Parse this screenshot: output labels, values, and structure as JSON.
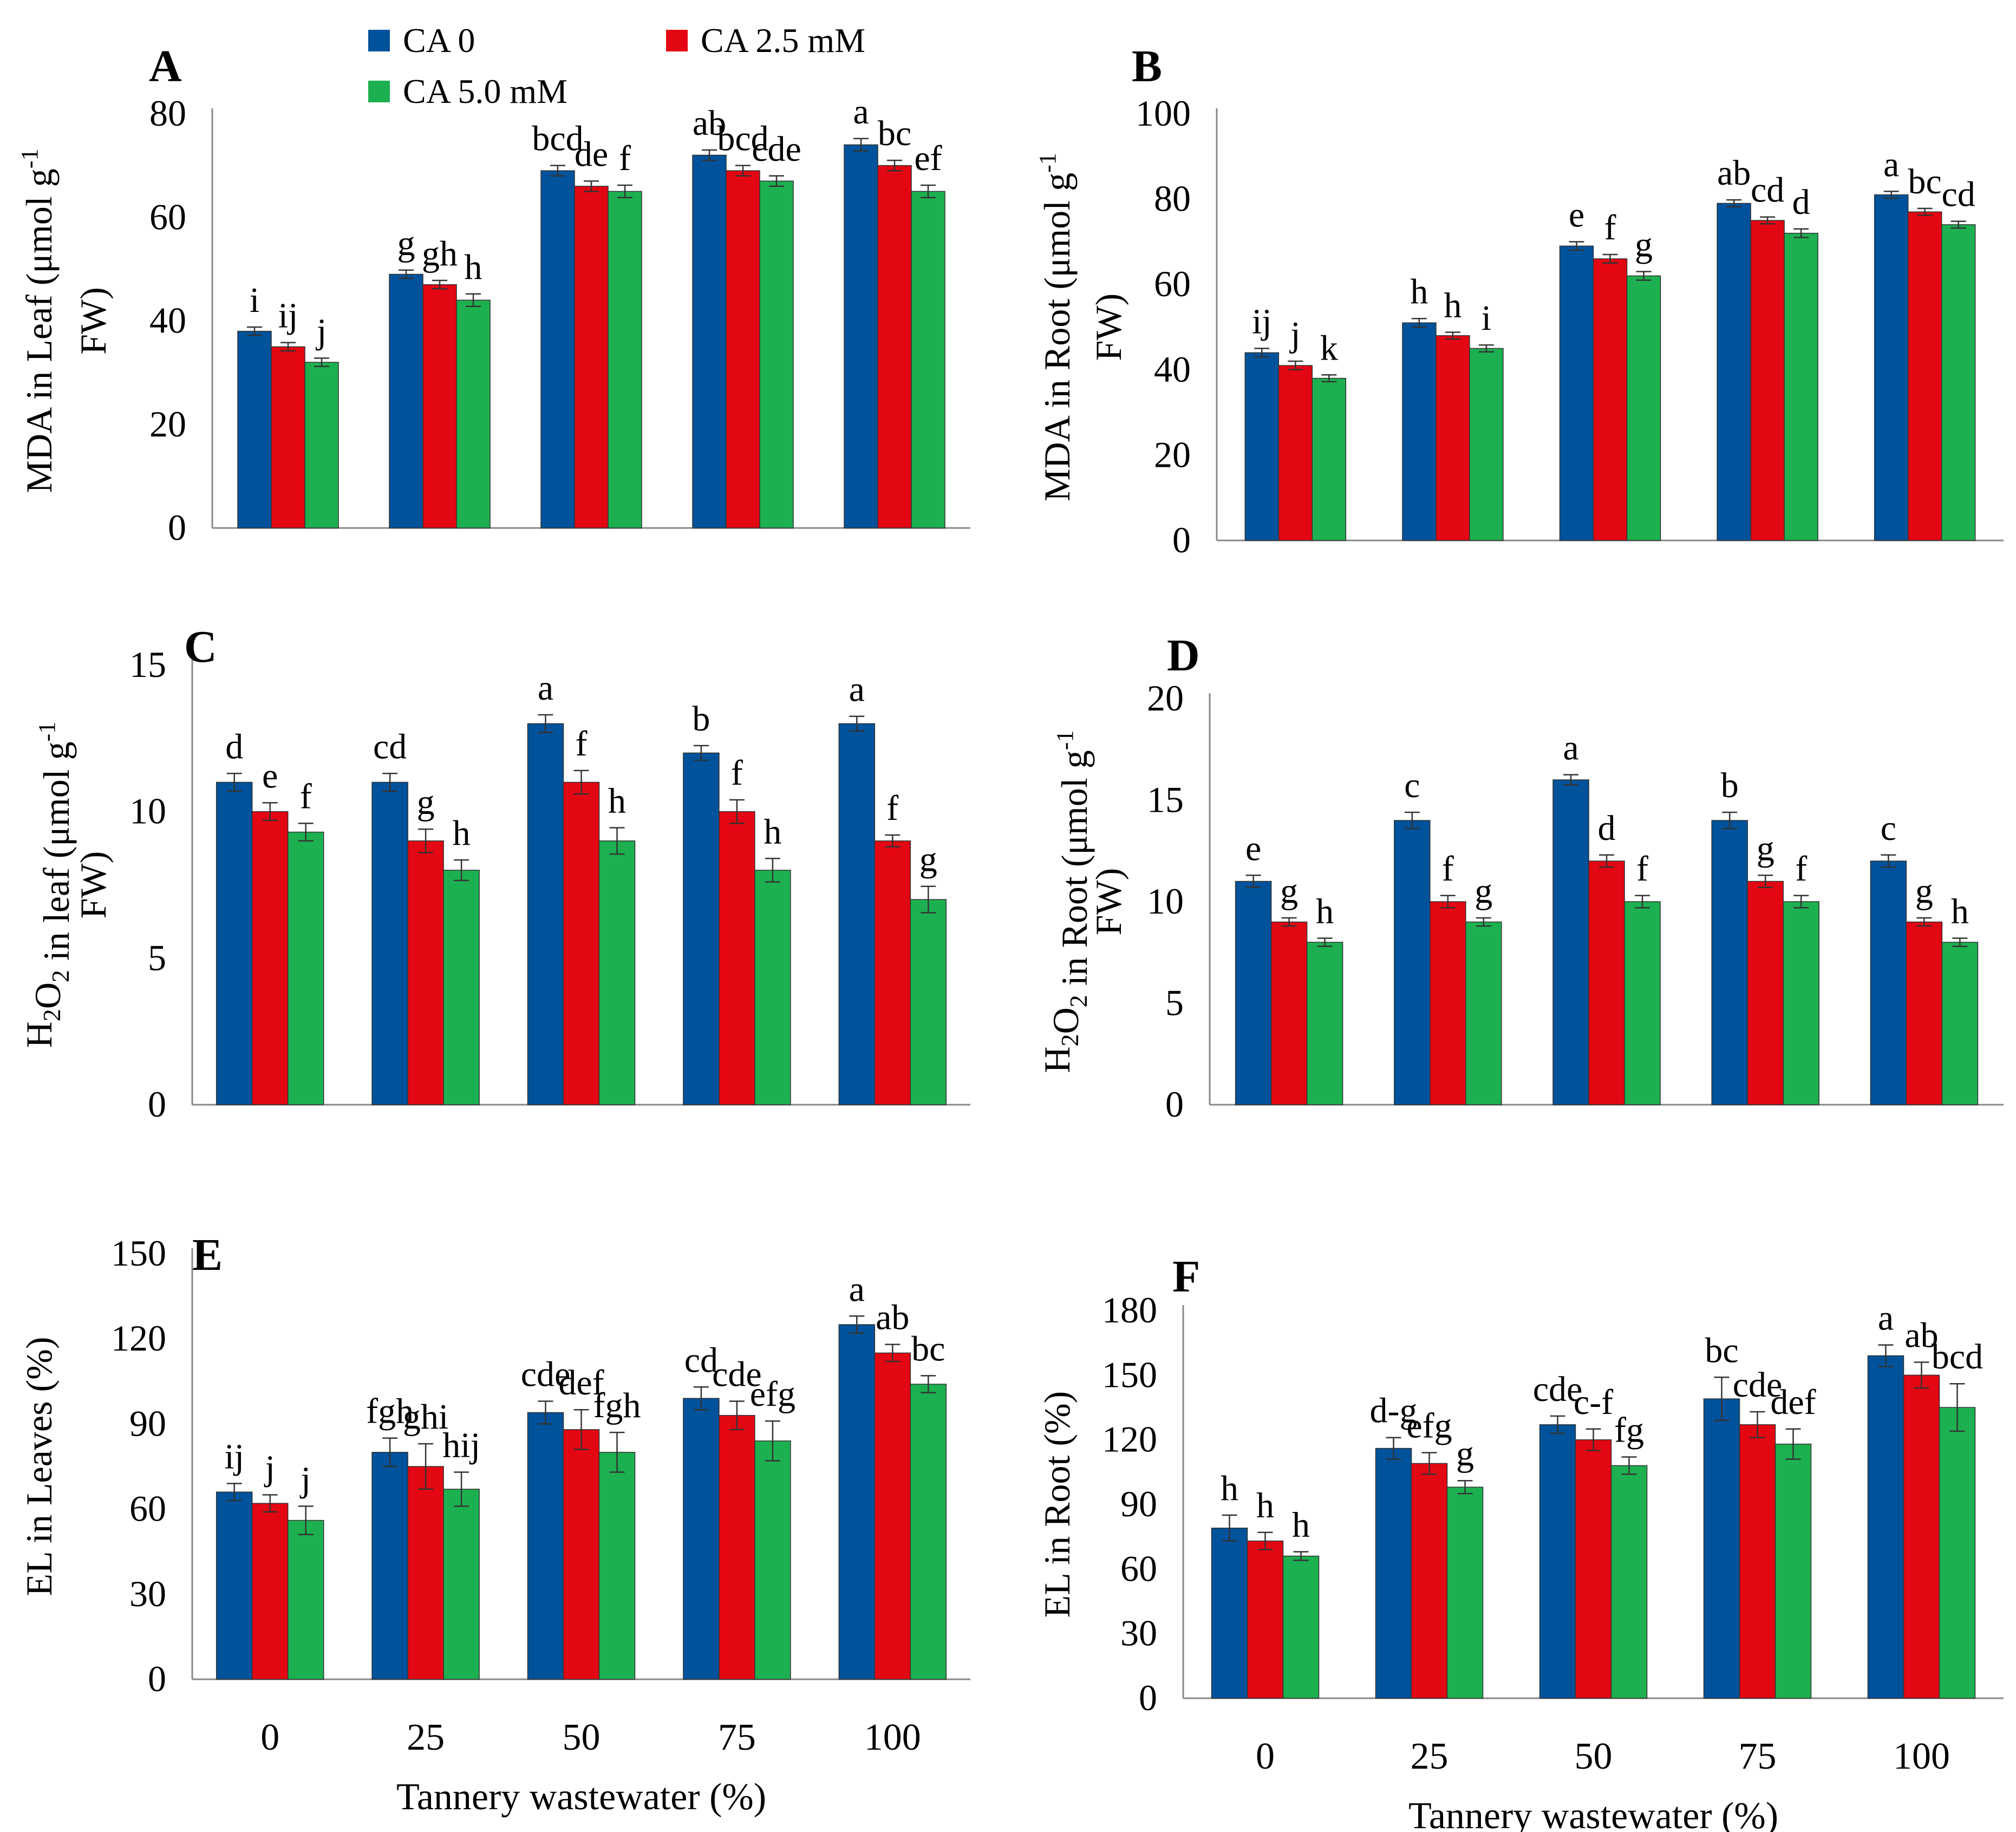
{
  "legend": [
    {
      "name": "CA 0",
      "color": "#00529B"
    },
    {
      "name": "CA 2.5 mM",
      "color": "#E30613"
    },
    {
      "name": "CA 5.0 mM",
      "color": "#1DB050"
    }
  ],
  "x_axis_title": "Tannery wastewater (%)",
  "chart_data": [
    {
      "id": "A",
      "type": "bar",
      "panel_label": "A",
      "ylabel_line1": "MDA in Leaf (μmol g",
      "ylabel_sup": "-1",
      "ylabel_line2": "FW)",
      "categories": [
        "0",
        "25",
        "50",
        "75",
        "100"
      ],
      "show_xticks": false,
      "ylim": [
        0,
        80
      ],
      "yticks": [
        0,
        20,
        40,
        60,
        80
      ],
      "series": [
        {
          "name": "CA 0",
          "values": [
            38,
            49,
            69,
            72,
            74
          ],
          "errors": [
            0.8,
            0.8,
            1.0,
            1.0,
            1.2
          ],
          "labels": [
            "i",
            "g",
            "bcd",
            "ab",
            "a"
          ]
        },
        {
          "name": "CA 2.5 mM",
          "values": [
            35,
            47,
            66,
            69,
            70
          ],
          "errors": [
            0.8,
            0.8,
            1.0,
            1.0,
            1.0
          ],
          "labels": [
            "ij",
            "gh",
            "de",
            "bcd",
            "bc"
          ]
        },
        {
          "name": "CA 5.0 mM",
          "values": [
            32,
            44,
            65,
            67,
            65
          ],
          "errors": [
            0.8,
            1.2,
            1.2,
            1.0,
            1.2
          ],
          "labels": [
            "j",
            "h",
            "f",
            "cde",
            "ef"
          ]
        }
      ]
    },
    {
      "id": "B",
      "type": "bar",
      "panel_label": "B",
      "ylabel_line1": "MDA in Root (μmol g",
      "ylabel_sup": "-1",
      "ylabel_line2": "FW)",
      "categories": [
        "0",
        "25",
        "50",
        "75",
        "100"
      ],
      "show_xticks": false,
      "ylim": [
        0,
        100
      ],
      "yticks": [
        0,
        20,
        40,
        60,
        80,
        100
      ],
      "series": [
        {
          "name": "CA 0",
          "values": [
            44,
            51,
            69,
            79,
            81
          ],
          "errors": [
            1.0,
            1.0,
            1.0,
            0.8,
            0.8
          ],
          "labels": [
            "ij",
            "h",
            "e",
            "ab",
            "a"
          ]
        },
        {
          "name": "CA 2.5 mM",
          "values": [
            41,
            48,
            66,
            75,
            77
          ],
          "errors": [
            1.0,
            0.8,
            1.0,
            0.8,
            0.8
          ],
          "labels": [
            "j",
            "h",
            "f",
            "cd",
            "bc"
          ]
        },
        {
          "name": "CA 5.0 mM",
          "values": [
            38,
            45,
            62,
            72,
            74
          ],
          "errors": [
            0.8,
            0.8,
            1.0,
            1.0,
            0.8
          ],
          "labels": [
            "k",
            "i",
            "g",
            "d",
            "cd"
          ]
        }
      ]
    },
    {
      "id": "C",
      "type": "bar",
      "panel_label": "C",
      "ylabel_line1": "H2O2 in leaf (μmol g",
      "ylabel_sup": "-1",
      "ylabel_line2": "FW)",
      "categories": [
        "0",
        "25",
        "50",
        "75",
        "100"
      ],
      "show_xticks": false,
      "ylim": [
        0,
        15
      ],
      "yticks": [
        0,
        5,
        10,
        15
      ],
      "series": [
        {
          "name": "CA 0",
          "values": [
            11,
            11,
            13,
            12,
            13
          ],
          "errors": [
            0.3,
            0.3,
            0.3,
            0.25,
            0.25
          ],
          "labels": [
            "d",
            "cd",
            "a",
            "b",
            "a"
          ]
        },
        {
          "name": "CA 2.5 mM",
          "values": [
            10,
            9,
            11,
            10,
            9
          ],
          "errors": [
            0.3,
            0.4,
            0.4,
            0.4,
            0.2
          ],
          "labels": [
            "e",
            "g",
            "f",
            "f",
            "f"
          ]
        },
        {
          "name": "CA 5.0 mM",
          "values": [
            9.3,
            8,
            9,
            8,
            7
          ],
          "errors": [
            0.3,
            0.35,
            0.45,
            0.4,
            0.45
          ],
          "labels": [
            "f",
            "h",
            "h",
            "h",
            "g"
          ]
        }
      ]
    },
    {
      "id": "D",
      "type": "bar",
      "panel_label": "D",
      "ylabel_line1": "H2O2 in Root (μmol g",
      "ylabel_sup": "-1",
      "ylabel_line2": "FW)",
      "categories": [
        "0",
        "25",
        "50",
        "75",
        "100"
      ],
      "show_xticks": false,
      "ylim": [
        0,
        20
      ],
      "yticks": [
        0,
        5,
        10,
        15,
        20
      ],
      "series": [
        {
          "name": "CA 0",
          "values": [
            11,
            14,
            16,
            14,
            12
          ],
          "errors": [
            0.3,
            0.4,
            0.25,
            0.4,
            0.3
          ],
          "labels": [
            "e",
            "c",
            "a",
            "b",
            "c"
          ]
        },
        {
          "name": "CA 2.5 mM",
          "values": [
            9,
            10,
            12,
            11,
            9
          ],
          "errors": [
            0.2,
            0.3,
            0.3,
            0.3,
            0.2
          ],
          "labels": [
            "g",
            "f",
            "d",
            "g",
            "g"
          ]
        },
        {
          "name": "CA 5.0 mM",
          "values": [
            8,
            9,
            10,
            10,
            8
          ],
          "errors": [
            0.2,
            0.2,
            0.3,
            0.3,
            0.2
          ],
          "labels": [
            "h",
            "g",
            "f",
            "f",
            "h"
          ]
        }
      ]
    },
    {
      "id": "E",
      "type": "bar",
      "panel_label": "E",
      "ylabel_line1": "EL in Leaves (%)",
      "ylabel_sup": "",
      "ylabel_line2": "",
      "categories": [
        "0",
        "25",
        "50",
        "75",
        "100"
      ],
      "show_xticks": true,
      "ylim": [
        0,
        150
      ],
      "yticks": [
        0,
        30,
        60,
        90,
        120,
        150
      ],
      "series": [
        {
          "name": "CA 0",
          "values": [
            66,
            80,
            94,
            99,
            125
          ],
          "errors": [
            3,
            5,
            4,
            4,
            3
          ],
          "labels": [
            "ij",
            "fgh",
            "cde",
            "cd",
            "a"
          ]
        },
        {
          "name": "CA 2.5 mM",
          "values": [
            62,
            75,
            88,
            93,
            115
          ],
          "errors": [
            3,
            8,
            7,
            5,
            3
          ],
          "labels": [
            "j",
            "ghi",
            "def",
            "cde",
            "ab"
          ]
        },
        {
          "name": "CA 5.0 mM",
          "values": [
            56,
            67,
            80,
            84,
            104
          ],
          "errors": [
            5,
            6,
            7,
            7,
            3
          ],
          "labels": [
            "j",
            "hij",
            "fgh",
            "efg",
            "bc"
          ]
        }
      ]
    },
    {
      "id": "F",
      "type": "bar",
      "panel_label": "F",
      "ylabel_line1": "EL in Root (%)",
      "ylabel_sup": "",
      "ylabel_line2": "",
      "categories": [
        "0",
        "25",
        "50",
        "75",
        "100"
      ],
      "show_xticks": true,
      "ylim": [
        0,
        180
      ],
      "yticks": [
        0,
        30,
        60,
        90,
        120,
        150,
        180
      ],
      "series": [
        {
          "name": "CA 0",
          "values": [
            79,
            116,
            127,
            139,
            159
          ],
          "errors": [
            6,
            5,
            4,
            10,
            5
          ],
          "labels": [
            "h",
            "d-g",
            "cde",
            "bc",
            "a"
          ]
        },
        {
          "name": "CA 2.5 mM",
          "values": [
            73,
            109,
            120,
            127,
            150
          ],
          "errors": [
            4,
            5,
            5,
            6,
            6
          ],
          "labels": [
            "h",
            "efg",
            "c-f",
            "cde",
            "ab"
          ]
        },
        {
          "name": "CA 5.0 mM",
          "values": [
            66,
            98,
            108,
            118,
            135
          ],
          "errors": [
            2,
            3,
            4,
            7,
            11
          ],
          "labels": [
            "h",
            "g",
            "fg",
            "def",
            "bcd"
          ]
        }
      ]
    }
  ]
}
